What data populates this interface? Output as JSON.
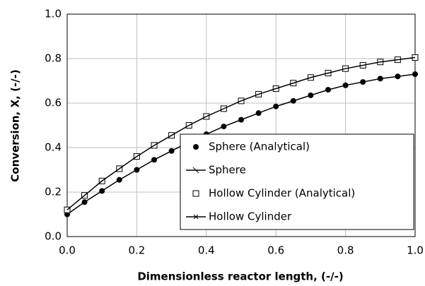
{
  "chart_data": {
    "type": "line",
    "xlabel": "Dimensionless reactor length, (-/-)",
    "ylabel": "Conversion, X, (-/-)",
    "x": [
      0,
      0.05,
      0.1,
      0.15,
      0.2,
      0.25,
      0.3,
      0.35,
      0.4,
      0.45,
      0.5,
      0.55,
      0.6,
      0.65,
      0.7,
      0.75,
      0.8,
      0.85,
      0.9,
      0.95,
      1.0
    ],
    "series": [
      {
        "name": "Sphere (Analytical)",
        "color": "#000000",
        "marker": "circle",
        "line": false,
        "values": [
          0.1,
          0.155,
          0.205,
          0.255,
          0.3,
          0.345,
          0.385,
          0.425,
          0.46,
          0.495,
          0.525,
          0.555,
          0.585,
          0.61,
          0.635,
          0.66,
          0.68,
          0.695,
          0.71,
          0.72,
          0.73
        ]
      },
      {
        "name": "Sphere",
        "color": "#000000",
        "marker": "dash",
        "line": true,
        "values": [
          0.1,
          0.155,
          0.205,
          0.255,
          0.3,
          0.345,
          0.385,
          0.425,
          0.46,
          0.495,
          0.525,
          0.555,
          0.585,
          0.61,
          0.635,
          0.66,
          0.68,
          0.695,
          0.71,
          0.72,
          0.73
        ]
      },
      {
        "name": "Hollow Cylinder (Analytical)",
        "color": "#000000",
        "marker": "square",
        "line": false,
        "values": [
          0.12,
          0.185,
          0.25,
          0.305,
          0.36,
          0.41,
          0.455,
          0.5,
          0.54,
          0.575,
          0.61,
          0.64,
          0.665,
          0.69,
          0.715,
          0.735,
          0.755,
          0.77,
          0.785,
          0.795,
          0.805
        ]
      },
      {
        "name": "Hollow Cylinder",
        "color": "#000000",
        "marker": "x",
        "line": true,
        "values": [
          0.12,
          0.185,
          0.25,
          0.305,
          0.36,
          0.41,
          0.455,
          0.5,
          0.54,
          0.575,
          0.61,
          0.64,
          0.665,
          0.69,
          0.715,
          0.735,
          0.755,
          0.77,
          0.785,
          0.795,
          0.805
        ]
      }
    ],
    "xlim": [
      0,
      1.0
    ],
    "ylim": [
      0,
      1.0
    ],
    "xticks": [
      {
        "value": 0,
        "label": "0.0"
      },
      0.2,
      0.4,
      0.6,
      0.8,
      {
        "value": 1.0,
        "label": "1.0"
      }
    ],
    "yticks": [
      {
        "value": 0,
        "label": "0.0"
      },
      0.2,
      0.4,
      0.6,
      0.8,
      {
        "value": 1.0,
        "label": "1.0"
      }
    ],
    "grid": true
  }
}
